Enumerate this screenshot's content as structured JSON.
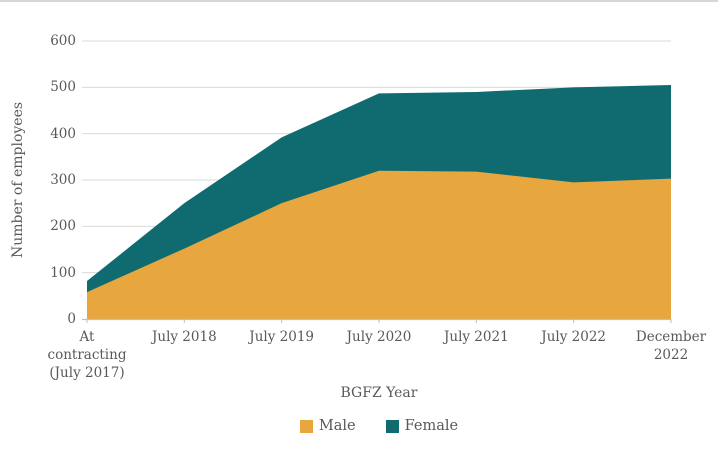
{
  "page": {
    "background": "#ffffff",
    "top_border_color": "#d6d6da"
  },
  "chart_data": {
    "type": "area",
    "stacked": true,
    "title": "",
    "xlabel": "BGFZ Year",
    "ylabel": "Number of employees",
    "ylim": [
      0,
      600
    ],
    "yticks": [
      0,
      100,
      200,
      300,
      400,
      500,
      600
    ],
    "grid": "horizontal gridlines at every 100",
    "legend_position": "bottom-center",
    "categories": [
      "At contracting (July 2017)",
      "July 2018",
      "July 2019",
      "July 2020",
      "July 2021",
      "July 2022",
      "December 2022"
    ],
    "category_label_lines": [
      [
        "At",
        "contracting",
        "(July 2017)"
      ],
      [
        "July 2018"
      ],
      [
        "July 2019"
      ],
      [
        "July 2020"
      ],
      [
        "July 2021"
      ],
      [
        "July 2022"
      ],
      [
        "December",
        "2022"
      ]
    ],
    "series": [
      {
        "name": "Male",
        "color": "#e7a63e",
        "values": [
          58,
          152,
          250,
          320,
          318,
          295,
          303
        ]
      },
      {
        "name": "Female",
        "color": "#0f6b70",
        "values": [
          24,
          98,
          142,
          167,
          172,
          205,
          202
        ]
      }
    ],
    "stacked_totals": [
      82,
      250,
      392,
      487,
      490,
      500,
      505
    ],
    "text_color": "#595959",
    "gridline_color": "#d9d9d9",
    "axis_line_color": "#bfbfbf"
  }
}
